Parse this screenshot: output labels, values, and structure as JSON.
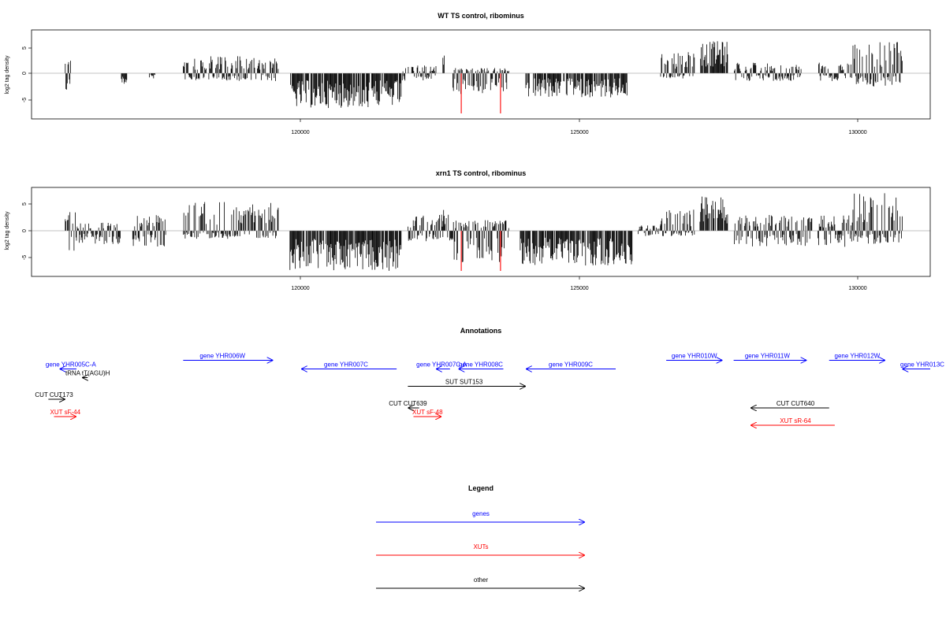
{
  "colors": {
    "gene": "#0000ff",
    "xut": "#ff0000",
    "other": "#000000",
    "spike": "#ff0000"
  },
  "chart_data": [
    {
      "type": "bar",
      "title": "WT TS control, ribominus",
      "ylabel": "log2 tag density",
      "xlim": [
        115200,
        131200
      ],
      "ylim": [
        -8,
        8
      ],
      "xticks": [
        "120000",
        "125000",
        "130000"
      ],
      "yticks": [
        "-5",
        "0",
        "5"
      ],
      "grid": false,
      "segments": [
        {
          "from": 115800,
          "to": 115900,
          "min": -4,
          "max": 2.5
        },
        {
          "from": 116800,
          "to": 116900,
          "min": -2,
          "max": 0
        },
        {
          "from": 117300,
          "to": 117400,
          "min": -1,
          "max": 0
        },
        {
          "from": 117900,
          "to": 119600,
          "min": -1.5,
          "max": 3.2
        },
        {
          "from": 119800,
          "to": 121800,
          "min": -6.5,
          "max": 0
        },
        {
          "from": 121800,
          "to": 122400,
          "min": -1.5,
          "max": 1.5
        },
        {
          "from": 122500,
          "to": 122550,
          "min": 0,
          "max": 4
        },
        {
          "from": 122700,
          "to": 123700,
          "min": -4,
          "max": 1
        },
        {
          "from": 124000,
          "to": 125800,
          "min": -4.5,
          "max": 0
        },
        {
          "from": 126400,
          "to": 127000,
          "min": -1,
          "max": 4
        },
        {
          "from": 127100,
          "to": 127600,
          "min": 0,
          "max": 6
        },
        {
          "from": 127700,
          "to": 128900,
          "min": -1.5,
          "max": 2
        },
        {
          "from": 129200,
          "to": 129800,
          "min": -1.5,
          "max": 2
        },
        {
          "from": 129800,
          "to": 130700,
          "min": -2.5,
          "max": 6
        }
      ],
      "spikes": [
        {
          "x": 122850,
          "y": -7.5
        },
        {
          "x": 123550,
          "y": -7.5
        }
      ]
    },
    {
      "type": "bar",
      "title": "xrn1 TS control, ribominus",
      "ylabel": "log2 tag density",
      "xlim": [
        115200,
        131200
      ],
      "ylim": [
        -8,
        8
      ],
      "xticks": [
        "120000",
        "125000",
        "130000"
      ],
      "yticks": [
        "-5",
        "0",
        "5"
      ],
      "grid": false,
      "segments": [
        {
          "from": 115800,
          "to": 116000,
          "min": -4.5,
          "max": 3.5
        },
        {
          "from": 116000,
          "to": 116800,
          "min": -2.5,
          "max": 1.5
        },
        {
          "from": 117000,
          "to": 117600,
          "min": -3,
          "max": 3
        },
        {
          "from": 117900,
          "to": 119600,
          "min": -1.5,
          "max": 5.5
        },
        {
          "from": 119800,
          "to": 121800,
          "min": -7.5,
          "max": 0
        },
        {
          "from": 121900,
          "to": 122700,
          "min": -2,
          "max": 3
        },
        {
          "from": 122500,
          "to": 122550,
          "min": 0,
          "max": 5.5
        },
        {
          "from": 122700,
          "to": 123700,
          "min": -6,
          "max": 2
        },
        {
          "from": 123900,
          "to": 125900,
          "min": -6.5,
          "max": 0
        },
        {
          "from": 126000,
          "to": 126400,
          "min": -1,
          "max": 1
        },
        {
          "from": 126400,
          "to": 127000,
          "min": -1,
          "max": 4
        },
        {
          "from": 127100,
          "to": 127600,
          "min": 0,
          "max": 6.5
        },
        {
          "from": 127700,
          "to": 129100,
          "min": -3,
          "max": 3
        },
        {
          "from": 129200,
          "to": 129800,
          "min": -3,
          "max": 3
        },
        {
          "from": 129800,
          "to": 130700,
          "min": -2.5,
          "max": 7
        }
      ],
      "spikes": [
        {
          "x": 122850,
          "y": -7.5
        },
        {
          "x": 123550,
          "y": -7.5
        }
      ]
    }
  ],
  "annotations": {
    "title": "Annotations",
    "items": [
      {
        "label": "gene YHR005C-A",
        "color": "gene",
        "dir": "left",
        "from": 115700,
        "to": 116000,
        "row": 3,
        "label_pos": 115900
      },
      {
        "label": "gene YHR006W",
        "color": "gene",
        "dir": "right",
        "from": 117900,
        "to": 119500,
        "row": 1,
        "label_pos": 118600
      },
      {
        "label": "gene YHR007C",
        "color": "gene",
        "dir": "left",
        "from": 120000,
        "to": 121700,
        "row": 3,
        "label_pos": 120800
      },
      {
        "label": "gene YHR007C-A",
        "color": "gene",
        "dir": "left",
        "from": 122400,
        "to": 122650,
        "row": 3,
        "label_pos": 122500
      },
      {
        "label": "gene YHR008C",
        "color": "gene",
        "dir": "left",
        "from": 122800,
        "to": 123600,
        "row": 3,
        "label_pos": 123200
      },
      {
        "label": "gene YHR009C",
        "color": "gene",
        "dir": "left",
        "from": 124000,
        "to": 125600,
        "row": 3,
        "label_pos": 124800
      },
      {
        "label": "gene YHR010W",
        "color": "gene",
        "dir": "right",
        "from": 126500,
        "to": 127500,
        "row": 1,
        "label_pos": 127000
      },
      {
        "label": "gene YHR011W",
        "color": "gene",
        "dir": "right",
        "from": 127700,
        "to": 129000,
        "row": 1,
        "label_pos": 128300
      },
      {
        "label": "gene YHR012W",
        "color": "gene",
        "dir": "right",
        "from": 129400,
        "to": 130400,
        "row": 1,
        "label_pos": 129900
      },
      {
        "label": "gene YHR013C",
        "color": "gene",
        "dir": "left",
        "from": 130700,
        "to": 131200,
        "row": 3,
        "label_pos": 131300
      },
      {
        "label": "tRNA tT(AGU)H",
        "color": "other",
        "dir": "left",
        "from": 116100,
        "to": 116200,
        "row": 5,
        "label_pos": 116200
      },
      {
        "label": "SUT SUT153",
        "color": "other",
        "dir": "right",
        "from": 121900,
        "to": 124000,
        "row": 7,
        "label_pos": 122900
      },
      {
        "label": "CUT CUT173",
        "color": "other",
        "dir": "right",
        "from": 115500,
        "to": 115800,
        "row": 10,
        "label_pos": 115600
      },
      {
        "label": "CUT CUT639",
        "color": "other",
        "dir": "left",
        "from": 121900,
        "to": 122100,
        "row": 12,
        "label_pos": 121900
      },
      {
        "label": "CUT CUT640",
        "color": "other",
        "dir": "left",
        "from": 128000,
        "to": 129400,
        "row": 12,
        "label_pos": 128800
      },
      {
        "label": "XUT sF-44",
        "color": "xut",
        "dir": "right",
        "from": 115600,
        "to": 116000,
        "row": 14,
        "label_pos": 115800
      },
      {
        "label": "XUT sF-48",
        "color": "xut",
        "dir": "right",
        "from": 122000,
        "to": 122500,
        "row": 14,
        "label_pos": 122250
      },
      {
        "label": "XUT sR-64",
        "color": "xut",
        "dir": "left",
        "from": 128000,
        "to": 129500,
        "row": 16,
        "label_pos": 128800
      }
    ]
  },
  "legend": {
    "title": "Legend",
    "items": [
      {
        "label": "genes",
        "color": "gene"
      },
      {
        "label": "XUTs",
        "color": "xut"
      },
      {
        "label": "other",
        "color": "other"
      }
    ]
  }
}
